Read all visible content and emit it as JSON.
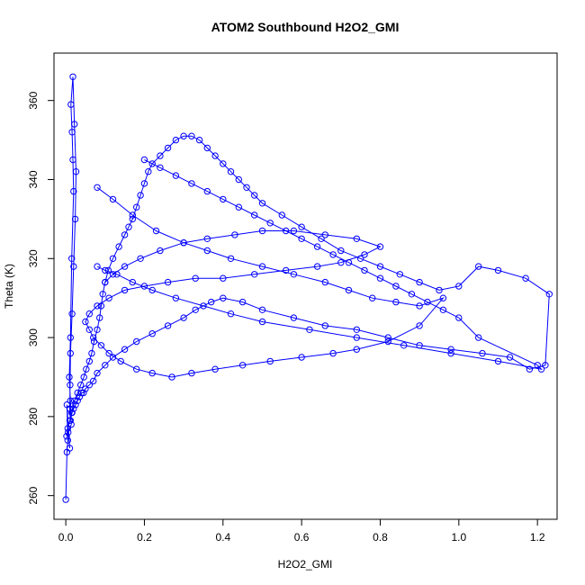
{
  "chart_data": {
    "type": "scatter",
    "mode": "lines+points",
    "title": "ATOM2 Southbound H2O2_GMI",
    "xlabel": "H2O2_GMI",
    "ylabel": "Theta (K)",
    "xlim": [
      -0.03,
      1.25
    ],
    "ylim": [
      254,
      372
    ],
    "xticks": [
      0.0,
      0.2,
      0.4,
      0.6,
      0.8,
      1.0,
      1.2
    ],
    "xtick_labels": [
      "0.0",
      "0.2",
      "0.4",
      "0.6",
      "0.8",
      "1.0",
      "1.2"
    ],
    "yticks": [
      260,
      280,
      300,
      320,
      340,
      360
    ],
    "ytick_labels": [
      "260",
      "280",
      "300",
      "320",
      "340",
      "360"
    ],
    "color": "#0000ff",
    "marker": "open-circle",
    "grid": false,
    "legend": "none",
    "series": [
      {
        "x": [
          0.0,
          0.003,
          0.005,
          0.003,
          0.01,
          0.006,
          0.014,
          0.012,
          0.009,
          0.012,
          0.015,
          0.02,
          0.018,
          0.016,
          0.013,
          0.018,
          0.022,
          0.026,
          0.024,
          0.02,
          0.016,
          0.012,
          0.011,
          0.01,
          0.012,
          0.016,
          0.022,
          0.03,
          0.038,
          0.046,
          0.052,
          0.06,
          0.066,
          0.072,
          0.08,
          0.086,
          0.09,
          0.094,
          0.1,
          0.108,
          0.12,
          0.135,
          0.15,
          0.16,
          0.17,
          0.18,
          0.19,
          0.2,
          0.21,
          0.22,
          0.24,
          0.26,
          0.28,
          0.3,
          0.32,
          0.34,
          0.36,
          0.38,
          0.4,
          0.42,
          0.44,
          0.46,
          0.48,
          0.5,
          0.55,
          0.6,
          0.65,
          0.7,
          0.75,
          0.8,
          0.85,
          0.9,
          0.95,
          1.0,
          1.05,
          1.1,
          1.17,
          1.23,
          1.22,
          1.18,
          1.13,
          1.06,
          0.98,
          0.9,
          0.82,
          0.74,
          0.66,
          0.58,
          0.5,
          0.45,
          0.4,
          0.37,
          0.33,
          0.3,
          0.26,
          0.22,
          0.18,
          0.15,
          0.12,
          0.1,
          0.08,
          0.07,
          0.06,
          0.05,
          0.045,
          0.04,
          0.035,
          0.03,
          0.025,
          0.02,
          0.015,
          0.01,
          0.005,
          0.002
        ],
        "y": [
          259,
          271,
          274,
          283,
          272,
          276,
          278,
          284,
          290,
          300,
          320,
          337,
          345,
          352,
          359,
          366,
          354,
          342,
          330,
          318,
          306,
          296,
          288,
          282,
          279,
          281,
          284,
          286,
          288,
          290,
          292,
          294,
          296,
          299,
          302,
          305,
          308,
          311,
          314,
          317,
          320,
          323,
          326,
          328,
          330,
          333,
          336,
          339,
          342,
          344,
          346,
          348,
          350,
          351,
          351,
          350,
          348,
          346,
          344,
          342,
          340,
          338,
          336,
          334,
          331,
          328,
          325,
          322,
          320,
          318,
          316,
          314,
          312,
          313,
          318,
          317,
          315,
          311,
          293,
          292,
          295,
          296,
          297,
          298,
          300,
          302,
          303,
          305,
          307,
          309,
          310,
          309,
          307,
          305,
          303,
          301,
          299,
          297,
          295,
          293,
          291,
          289,
          288,
          287,
          286,
          286,
          285,
          284,
          283,
          282,
          281,
          279,
          277,
          275
        ]
      },
      {
        "x": [
          0.08,
          0.12,
          0.17,
          0.23,
          0.3,
          0.36,
          0.42,
          0.5,
          0.58,
          0.66,
          0.72,
          0.78,
          0.84,
          0.9,
          0.96,
          0.9,
          0.82,
          0.74,
          0.68,
          0.6,
          0.52,
          0.45,
          0.38,
          0.32,
          0.27,
          0.22,
          0.18,
          0.14,
          0.11,
          0.09,
          0.07,
          0.06,
          0.05,
          0.06,
          0.08,
          0.11,
          0.15,
          0.2,
          0.26,
          0.33,
          0.4,
          0.48,
          0.56,
          0.64,
          0.7,
          0.76,
          0.8,
          0.74,
          0.66,
          0.58,
          0.5,
          0.43,
          0.36,
          0.3,
          0.24,
          0.19,
          0.15,
          0.12,
          0.1
        ],
        "y": [
          338,
          335,
          331,
          327,
          324,
          322,
          320,
          318,
          316,
          314,
          312,
          310,
          309,
          308,
          310,
          303,
          299,
          297,
          296,
          295,
          294,
          293,
          292,
          291,
          290,
          291,
          292,
          294,
          296,
          298,
          300,
          302,
          304,
          306,
          308,
          310,
          312,
          313,
          314,
          315,
          315,
          316,
          317,
          318,
          319,
          321,
          323,
          325,
          326,
          327,
          327,
          326,
          325,
          324,
          322,
          320,
          318,
          316,
          314
        ]
      },
      {
        "x": [
          0.2,
          0.24,
          0.28,
          0.32,
          0.36,
          0.4,
          0.44,
          0.48,
          0.52,
          0.56,
          0.6,
          0.64,
          0.68,
          0.72,
          0.76,
          0.8,
          0.84,
          0.88,
          0.92,
          0.96,
          1.0,
          1.05,
          1.2,
          1.21,
          1.1,
          0.98,
          0.86,
          0.74,
          0.62,
          0.5,
          0.42,
          0.35,
          0.28,
          0.22,
          0.17,
          0.13,
          0.1,
          0.08
        ],
        "y": [
          345,
          343,
          341,
          339,
          337,
          335,
          333,
          331,
          329,
          327,
          325,
          323,
          321,
          319,
          317,
          315,
          313,
          311,
          309,
          307,
          305,
          300,
          293,
          292,
          294,
          296,
          298,
          300,
          302,
          304,
          306,
          308,
          310,
          312,
          314,
          316,
          317,
          318
        ]
      }
    ]
  }
}
